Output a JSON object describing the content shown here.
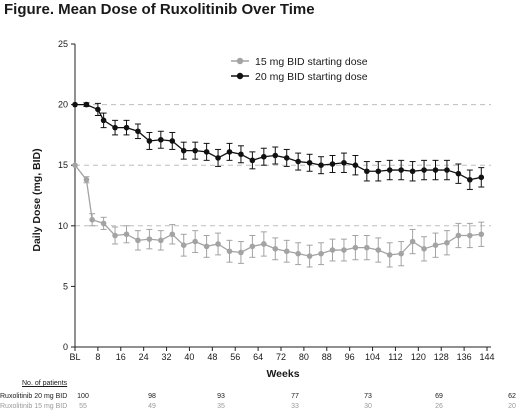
{
  "figure_title": "Figure. Mean Dose of Ruxolitinib Over Time",
  "colors": {
    "series_20": "#111111",
    "series_15": "#a3a3a3",
    "ref_line": "#bdbdbd",
    "axis": "#222222"
  },
  "chart_data": {
    "type": "line",
    "title": "Figure. Mean Dose of Ruxolitinib Over Time",
    "xlabel": "Weeks",
    "ylabel": "Daily Dose (mg, BID)",
    "ylim": [
      0,
      25
    ],
    "yticks": [
      0,
      5,
      10,
      15,
      20,
      25
    ],
    "xlim": [
      0,
      144
    ],
    "xticks": [
      0,
      8,
      16,
      24,
      32,
      40,
      48,
      56,
      64,
      72,
      80,
      88,
      96,
      104,
      112,
      120,
      128,
      136,
      144
    ],
    "xtick_labels": [
      "BL",
      "8",
      "16",
      "24",
      "32",
      "40",
      "48",
      "56",
      "64",
      "72",
      "80",
      "88",
      "96",
      "104",
      "112",
      "120",
      "128",
      "136",
      "144"
    ],
    "reference_lines": [
      10,
      15,
      20
    ],
    "grid": false,
    "legend_position": "top-left",
    "series": [
      {
        "name": "15 mg BID starting dose",
        "color": "#a3a3a3",
        "x": [
          0,
          4,
          6,
          10,
          14,
          18,
          22,
          26,
          30,
          34,
          38,
          42,
          46,
          50,
          54,
          58,
          62,
          66,
          70,
          74,
          78,
          82,
          86,
          90,
          94,
          98,
          102,
          106,
          110,
          114,
          118,
          122,
          126,
          130,
          134,
          138,
          142
        ],
        "y": [
          15,
          13.8,
          10.5,
          10.2,
          9.2,
          9.3,
          8.8,
          8.9,
          8.8,
          9.3,
          8.4,
          8.7,
          8.3,
          8.5,
          7.9,
          7.8,
          8.3,
          8.5,
          8.1,
          7.9,
          7.7,
          7.5,
          7.7,
          8.0,
          8.0,
          8.2,
          8.2,
          8.0,
          7.6,
          7.7,
          8.7,
          8.1,
          8.4,
          8.6,
          9.2,
          9.2,
          9.3
        ],
        "err": [
          0,
          0.25,
          0.5,
          0.5,
          0.7,
          0.7,
          0.8,
          0.8,
          0.8,
          0.8,
          0.9,
          0.9,
          0.9,
          0.9,
          0.9,
          0.9,
          0.9,
          1.0,
          0.9,
          0.9,
          0.9,
          0.9,
          0.9,
          0.9,
          0.9,
          1.0,
          1.0,
          1.0,
          1.0,
          1.0,
          1.0,
          1.0,
          1.0,
          1.0,
          1.0,
          1.0,
          1.0
        ]
      },
      {
        "name": "20 mg BID starting dose",
        "color": "#111111",
        "x": [
          0,
          4,
          8,
          10,
          14,
          18,
          22,
          26,
          30,
          34,
          38,
          42,
          46,
          50,
          54,
          58,
          62,
          66,
          70,
          74,
          78,
          82,
          86,
          90,
          94,
          98,
          102,
          106,
          110,
          114,
          118,
          122,
          126,
          130,
          134,
          138,
          142
        ],
        "y": [
          20,
          20,
          19.6,
          18.7,
          18.1,
          18.1,
          17.8,
          17.0,
          17.1,
          17.0,
          16.2,
          16.2,
          16.1,
          15.6,
          16.1,
          15.9,
          15.4,
          15.7,
          15.8,
          15.6,
          15.3,
          15.2,
          15.0,
          15.1,
          15.2,
          15.0,
          14.5,
          14.5,
          14.6,
          14.6,
          14.5,
          14.6,
          14.6,
          14.6,
          14.3,
          13.8,
          14.0
        ],
        "err": [
          0,
          0.15,
          0.5,
          0.6,
          0.6,
          0.6,
          0.6,
          0.7,
          0.7,
          0.7,
          0.7,
          0.7,
          0.7,
          0.7,
          0.7,
          0.7,
          0.7,
          0.7,
          0.7,
          0.7,
          0.7,
          0.7,
          0.7,
          0.7,
          0.8,
          0.8,
          0.8,
          0.8,
          0.8,
          0.8,
          0.8,
          0.8,
          0.8,
          0.8,
          0.8,
          0.8,
          0.8
        ]
      }
    ]
  },
  "patients_table": {
    "header": "No. of patients",
    "weeks": [
      0,
      24,
      48,
      72,
      96,
      120,
      144
    ],
    "rows": [
      {
        "label": "Ruxolitinib 20 mg BID",
        "values": [
          "100",
          "98",
          "93",
          "77",
          "73",
          "69",
          "62"
        ]
      },
      {
        "label": "Ruxolitinib 15 mg BID",
        "values": [
          "55",
          "49",
          "35",
          "33",
          "30",
          "26",
          "20"
        ]
      }
    ]
  }
}
